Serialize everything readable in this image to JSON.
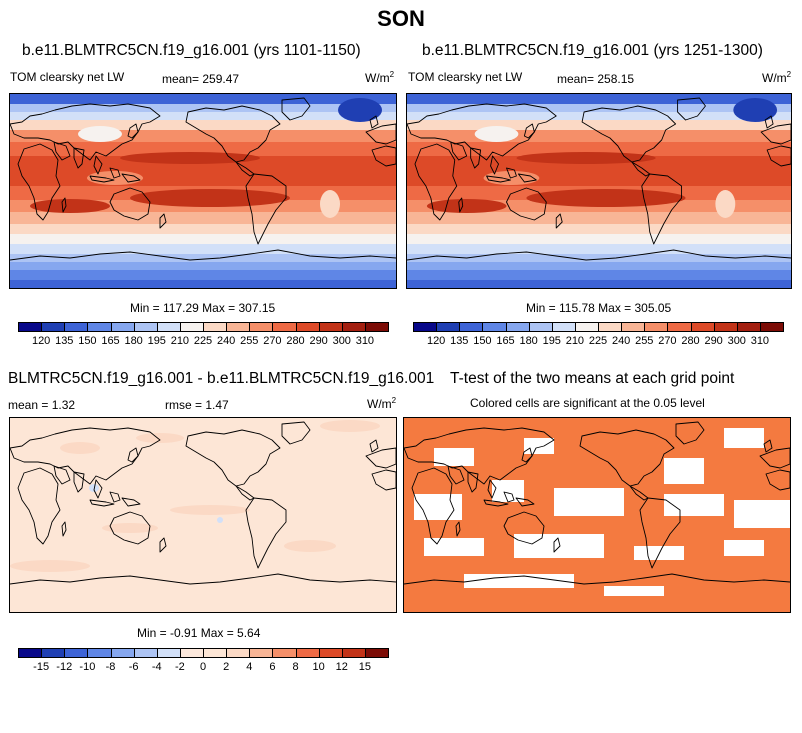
{
  "figure": {
    "title": "SON"
  },
  "panels": {
    "p1": {
      "title": "b.e11.BLMTRC5CN.f19_g16.001 (yrs 1101-1150)",
      "field_label": "TOM clearsky net LW",
      "mean_label": "mean= 259.47",
      "units_base": "W/m",
      "units_exp": "2",
      "minmax": "Min = 117.29 Max = 307.15"
    },
    "p2": {
      "title": "b.e11.BLMTRC5CN.f19_g16.001 (yrs 1251-1300)",
      "field_label": "TOM clearsky net LW",
      "mean_label": "mean= 258.15",
      "units_base": "W/m",
      "units_exp": "2",
      "minmax": "Min = 115.78 Max = 305.05"
    },
    "p3": {
      "title": "BLMTRC5CN.f19_g16.001 - b.e11.BLMTRC5CN.f19_g16.001",
      "mean_label": "mean =   1.32",
      "rmse_label": "rmse =   1.47",
      "units_base": "W/m",
      "units_exp": "2",
      "minmax": "Min =  -0.91 Max =   5.64"
    },
    "p4": {
      "title": "T-test of the two means at each grid point",
      "subtitle": "Colored cells are significant at the 0.05 level"
    }
  },
  "chart_data": [
    {
      "type": "heatmap",
      "name": "p1",
      "title": "b.e11.BLMTRC5CN.f19_g16.001 (yrs 1101-1150)",
      "variable": "TOM clearsky net LW",
      "units": "W/m2",
      "mean": 259.47,
      "min": 117.29,
      "max": 307.15,
      "colorbar_levels": [
        120,
        135,
        150,
        165,
        180,
        195,
        210,
        225,
        240,
        255,
        270,
        280,
        290,
        300,
        310
      ]
    },
    {
      "type": "heatmap",
      "name": "p2",
      "title": "b.e11.BLMTRC5CN.f19_g16.001 (yrs 1251-1300)",
      "variable": "TOM clearsky net LW",
      "units": "W/m2",
      "mean": 258.15,
      "min": 115.78,
      "max": 305.05,
      "colorbar_levels": [
        120,
        135,
        150,
        165,
        180,
        195,
        210,
        225,
        240,
        255,
        270,
        280,
        290,
        300,
        310
      ]
    },
    {
      "type": "heatmap",
      "name": "p3",
      "title": "BLMTRC5CN.f19_g16.001 - b.e11.BLMTRC5CN.f19_g16.001",
      "units": "W/m2",
      "mean": 1.32,
      "rmse": 1.47,
      "min": -0.91,
      "max": 5.64,
      "colorbar_levels": [
        -15,
        -12,
        -10,
        -8,
        -6,
        -4,
        -2,
        0,
        2,
        4,
        6,
        8,
        10,
        12,
        15
      ]
    },
    {
      "type": "heatmap",
      "name": "p4",
      "title": "T-test of the two means at each grid point",
      "subtitle": "Colored cells are significant at the 0.05 level",
      "significance_level": 0.05
    }
  ],
  "colors": {
    "abs_palette": [
      "#08088a",
      "#1f3fb3",
      "#3d63d6",
      "#5f86e6",
      "#86a7ef",
      "#adc4f4",
      "#d2e0f8",
      "#f6f2ef",
      "#fbd9c5",
      "#f8b596",
      "#f58f69",
      "#ee6a45",
      "#dd4a28",
      "#c23318",
      "#a31f10",
      "#7c0c06"
    ],
    "diff_palette": [
      "#08088a",
      "#1f3fb3",
      "#3d63d6",
      "#5f86e6",
      "#86a7ef",
      "#adc4f4",
      "#d2e0f8",
      "#fce8dc",
      "#fde6d6",
      "#fbd9c5",
      "#f8b596",
      "#f58f69",
      "#ee6a45",
      "#dd4a28",
      "#c23318",
      "#7c0c06"
    ],
    "ttest_fill": "#f47a40",
    "land_line": "#000000"
  }
}
